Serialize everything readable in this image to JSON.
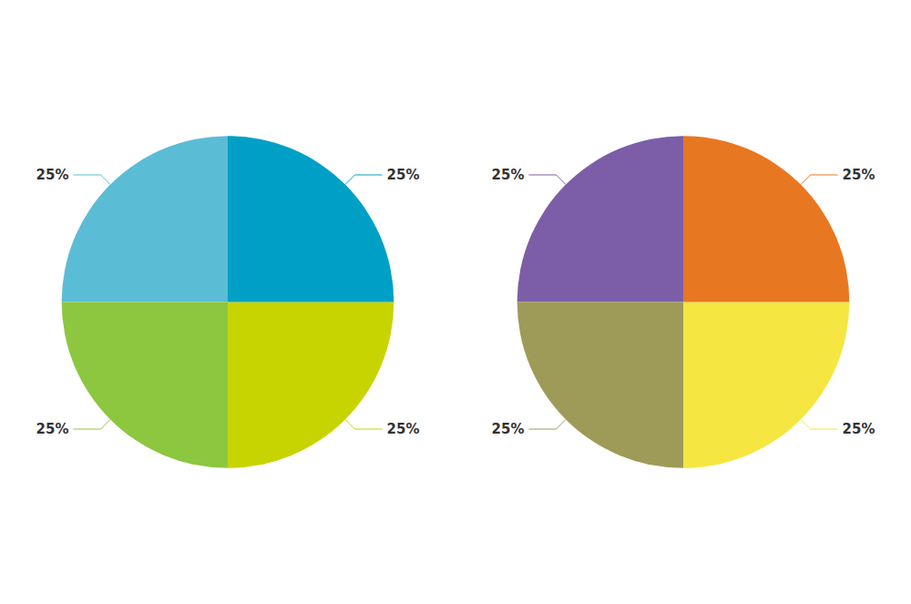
{
  "chart_data": [
    {
      "type": "pie",
      "values": [
        25,
        25,
        25,
        25
      ],
      "value_labels": [
        "25%",
        "25%",
        "25%",
        "25%"
      ],
      "colors": [
        "#5bbcd6",
        "#8dc63f",
        "#c8d400",
        "#00a0c6"
      ],
      "data_labels": true
    },
    {
      "type": "pie",
      "values": [
        25,
        25,
        25,
        25
      ],
      "value_labels": [
        "25%",
        "25%",
        "25%",
        "25%"
      ],
      "colors": [
        "#7b5ea7",
        "#9e9b58",
        "#f5e642",
        "#e87722"
      ],
      "data_labels": true
    }
  ]
}
